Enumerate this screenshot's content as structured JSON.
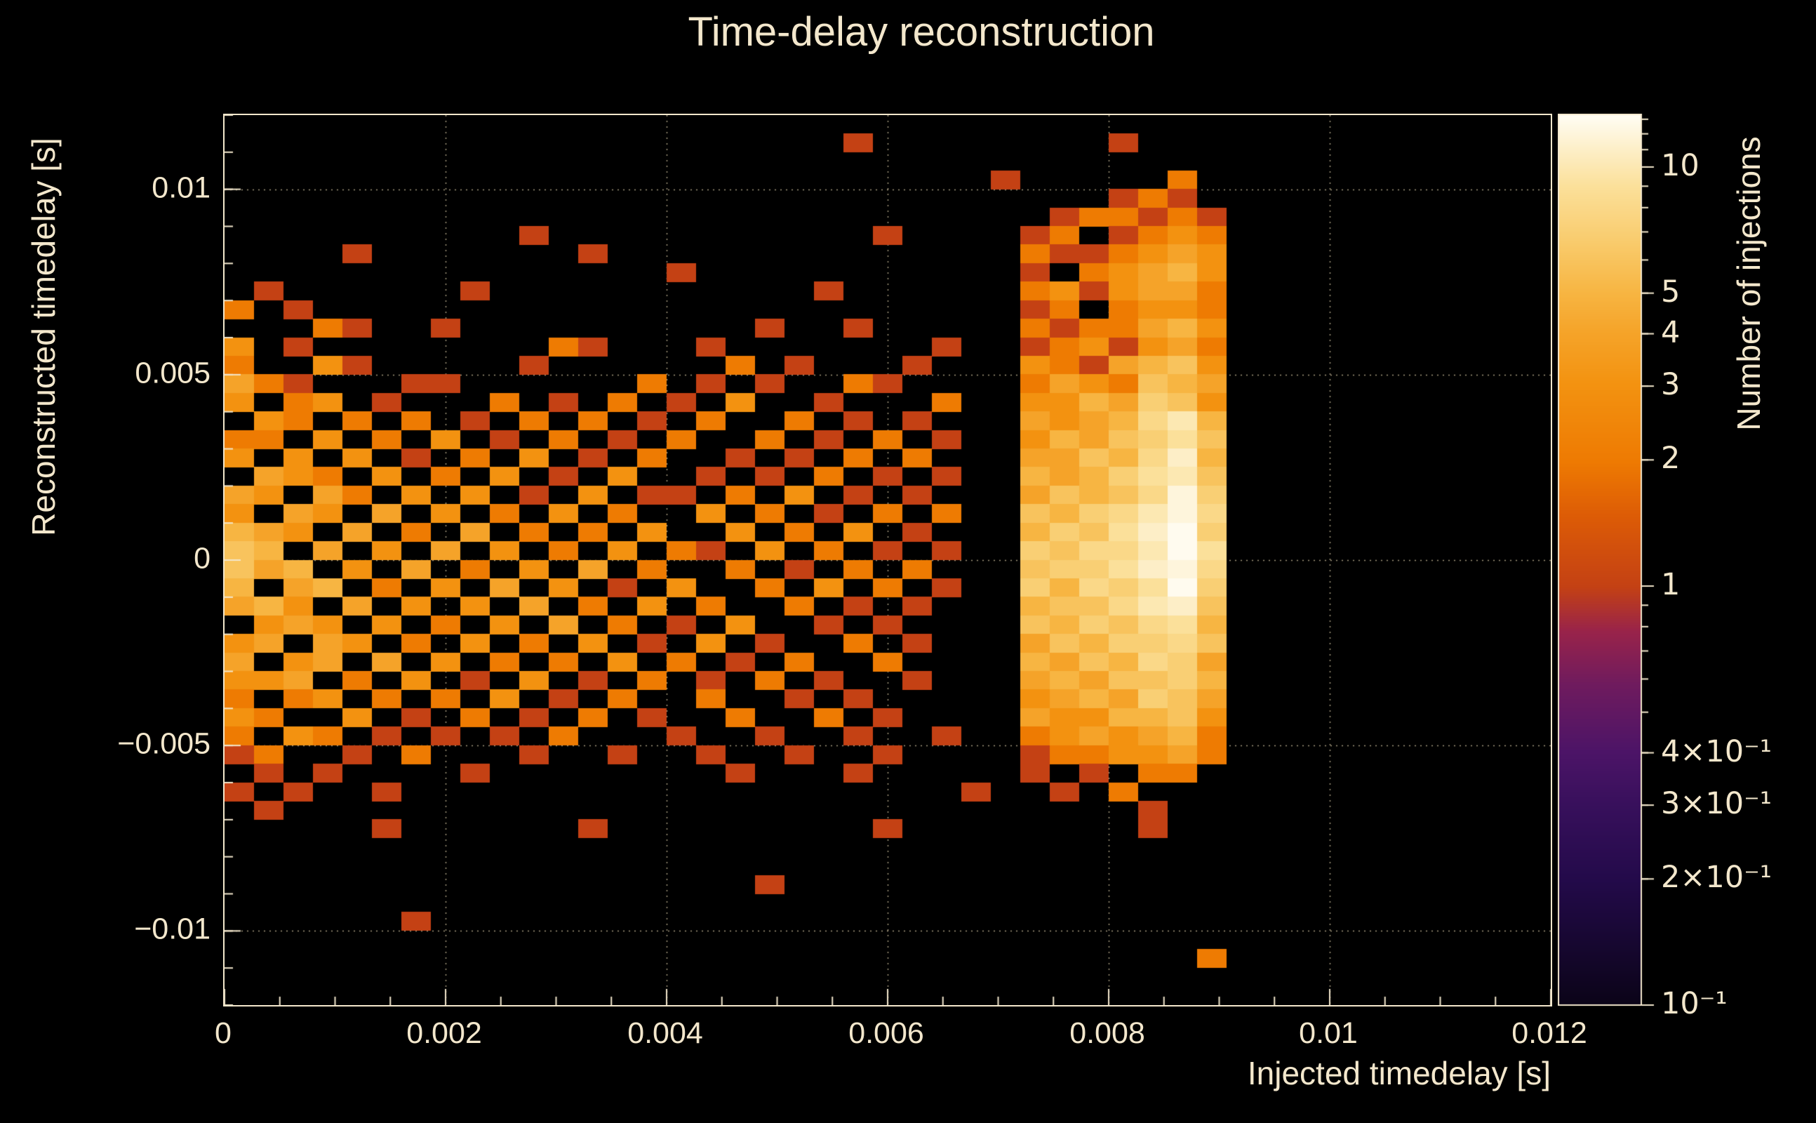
{
  "title": "Time-delay reconstruction",
  "x_axis": {
    "title": "Injected timedelay [s]",
    "min": 0,
    "max": 0.012,
    "ticks": [
      {
        "v": 0,
        "label": "0"
      },
      {
        "v": 0.002,
        "label": "0.002"
      },
      {
        "v": 0.004,
        "label": "0.004"
      },
      {
        "v": 0.006,
        "label": "0.006"
      },
      {
        "v": 0.008,
        "label": "0.008"
      },
      {
        "v": 0.01,
        "label": "0.01"
      },
      {
        "v": 0.012,
        "label": "0.012"
      }
    ],
    "minor_step": 0.0005
  },
  "y_axis": {
    "title": "Reconstructed timedelay [s]",
    "min": -0.012,
    "max": 0.012,
    "ticks": [
      {
        "v": 0.01,
        "label": "0.01"
      },
      {
        "v": 0.005,
        "label": "0.005"
      },
      {
        "v": 0,
        "label": "0"
      },
      {
        "v": -0.005,
        "label": "−0.005"
      },
      {
        "v": -0.01,
        "label": "−0.01"
      }
    ],
    "minor_step": 0.001
  },
  "z_axis": {
    "title": "Number of injections",
    "min": 0.1,
    "max": 13.3,
    "scale": "log",
    "ticks": [
      {
        "v": 10,
        "label": "10"
      },
      {
        "v": 5,
        "label": "5"
      },
      {
        "v": 4,
        "label": "4"
      },
      {
        "v": 3,
        "label": "3"
      },
      {
        "v": 2,
        "label": "2"
      },
      {
        "v": 1,
        "label": "1"
      },
      {
        "v": 0.4,
        "label": "4×10⁻¹"
      },
      {
        "v": 0.3,
        "label": "3×10⁻¹"
      },
      {
        "v": 0.2,
        "label": "2×10⁻¹"
      },
      {
        "v": 0.1,
        "label": "10⁻¹"
      }
    ],
    "minor_ticks": [
      0.2,
      0.3,
      0.4,
      0.5,
      0.6,
      0.7,
      0.8,
      0.9,
      1,
      2,
      3,
      4,
      5,
      6,
      7,
      8,
      9,
      10,
      11,
      12,
      13
    ]
  },
  "grid": {
    "x": [
      0.002,
      0.004,
      0.006,
      0.008,
      0.01
    ],
    "y": [
      -0.01,
      -0.005,
      0,
      0.005,
      0.01
    ]
  },
  "colors": {
    "background": "#000000",
    "axis": "#f3e7cc",
    "text": "#f3e7cc",
    "grid": "#d9cba6"
  },
  "chart_data": {
    "type": "heatmap",
    "title": "Time-delay reconstruction",
    "xlabel": "Injected timedelay [s]",
    "ylabel": "Reconstructed timedelay [s]",
    "zlabel": "Number of injections",
    "x_bins": {
      "min": 0,
      "max": 0.012,
      "count": 45
    },
    "y_bins": {
      "min": -0.012,
      "max": 0.012,
      "count": 48
    },
    "cell_value_encoding": {
      ".": 0,
      "1": 1,
      "2": 2,
      "3": 3,
      "4": 4,
      "5": 5,
      "6": 6,
      "7": 7,
      "8": 8,
      "9": 9,
      "a": 10,
      "b": 11,
      "c": 12,
      "d": 13
    },
    "rows_top_to_bottom": [
      ".............................................",
      ".....................1........1..............",
      ".............................................",
      "..........................1.....2............",
      "..............................121............",
      "............................122121...........",
      "..........1...........1....12.1232...........",
      "....1.......1..............2112343...........",
      "...............1...........1.23453...........",
      ".1......1...........1......2313442...........",
      "2.1........................12.2332...........",
      "...21..1..........1..1.....2122453...........",
      "3.1........21...1.......1..1231342...........",
      "2..31.....1......2.1...1...3214563...........",
      "421...11......2.1.1..21....2432654...........",
      "3.23.1...2.1.2.1.3..1...2..3354763...........",
      ".32.2.2.1.2.2.1.2..2.1.1...43458a5...........",
      "22.3.2.3.1.2.1.2..2.1.2.1..3546796...........",
      "3.3.3.1.2.3.1.2..1.1.2.2...44658b5...........",
      ".432.3.2.3.1.3..1.1.2.1.1..54579a6...........",
      "43.42.3.3.1.3.11.2.3.1.1...46568c7...........",
      "3.43.4.3.2.3.2..3.2.1.2.2..6578ac8...........",
      "543.4.2.4.2.2.3..3.2.3.1...5769bd7...........",
      "65.4.3.4.3.2.3.21.3.2.1.1..7688ad9...........",
      "645.3.4.2.3.4.2..2.1.2.2...6779bc8...........",
      "5.45.2.3.4.3.1.3..2.3.2.1..75879d7...........",
      "453.4.3.3.4.2.3.2..2.1.1...5668ab6...........",
      ".343.3.2.3.4.2.1.3..1.1....6576895...........",
      "34.43.2.3.2.3.1.3.1..2.1...4657786...........",
      "4.34.4.3.2.2.3.2.1.2..2....5465874...........",
      "334.2.3.1.3.1.2.1.2.1..1...4546675...........",
      "2.23.2.2.3.1.2..2..1.1.....3454764...........",
      "32..3.1.2.1.2.1..2..2.1....4335563...........",
      "2.32.1.1.1.2...1..1..1..1..2343452...........",
      "12..1.2...1..1..1..1..1....1223342...........",
      ".1.1....1........1...1.....1.1.22............",
      "1.1..1...................1..1.2..............",
      ".1.............................1.............",
      ".....1......1.........1........1.............",
      ".............................................",
      ".............................................",
      "..................1..........................",
      ".............................................",
      "......1......................................",
      ".............................................",
      ".................................2...........",
      ".............................................",
      "............................................."
    ],
    "color_scale": {
      "type": "log",
      "vmin": 0.1,
      "vmax": 13.3,
      "palette_stops": [
        [
          0.0,
          "#0b0418"
        ],
        [
          0.14,
          "#230a4a"
        ],
        [
          0.225,
          "#38105c"
        ],
        [
          0.284,
          "#4c1467"
        ],
        [
          0.36,
          "#6f1b5e"
        ],
        [
          0.42,
          "#99234a"
        ],
        [
          0.47,
          "#c44114"
        ],
        [
          0.55,
          "#dd5c06"
        ],
        [
          0.61,
          "#ee7a02"
        ],
        [
          0.7,
          "#f39311"
        ],
        [
          0.76,
          "#f5a52b"
        ],
        [
          0.8,
          "#f7b542"
        ],
        [
          0.86,
          "#f9cc6e"
        ],
        [
          0.92,
          "#fbe09a"
        ],
        [
          0.96,
          "#fdeec6"
        ],
        [
          1.0,
          "#fffdf4"
        ]
      ]
    }
  }
}
